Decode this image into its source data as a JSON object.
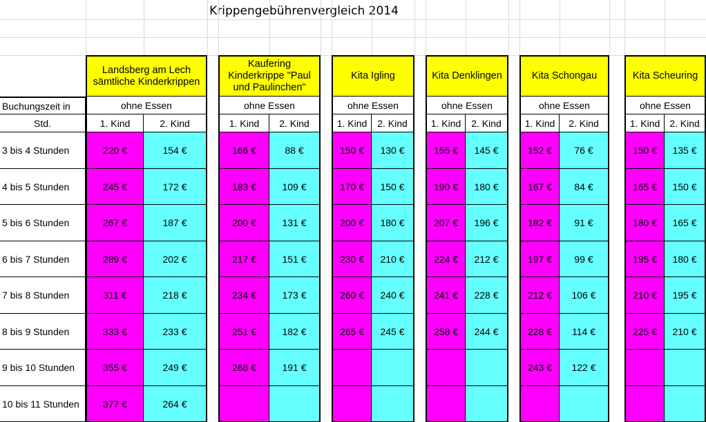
{
  "title": "Krippengebührenvergleich 2014",
  "row_header": {
    "line1": "Buchungszeit in",
    "line2": "Std."
  },
  "meal_label": "ohne Essen",
  "child_labels": [
    "1. Kind",
    "2. Kind"
  ],
  "rows": [
    "3 bis 4 Stunden",
    "4 bis 5 Stunden",
    "5 bis 6 Stunden",
    "6 bis 7 Stunden",
    "7 bis 8 Stunden",
    "8 bis 9 Stunden",
    "9 bis 10 Stunden",
    "10 bis 11 Stunden"
  ],
  "colors": {
    "header_fill": "#ffff00",
    "first_child_fill": "#ff00ff",
    "second_child_fill": "#66ffff"
  },
  "groups": [
    {
      "name": "Landsberg am Lech sämtliche Kinderkrippen",
      "first": [
        "220 €",
        "245 €",
        "267 €",
        "289 €",
        "311 €",
        "333 €",
        "355 €",
        "377 €"
      ],
      "second": [
        "154 €",
        "172 €",
        "187 €",
        "202 €",
        "218 €",
        "233 €",
        "249 €",
        "264 €"
      ]
    },
    {
      "name": "Kaufering Kinderkrippe \"Paul und Paulinchen\"",
      "first": [
        "166 €",
        "183 €",
        "200 €",
        "217 €",
        "234 €",
        "251 €",
        "268 €",
        ""
      ],
      "second": [
        "88 €",
        "109 €",
        "131 €",
        "151 €",
        "173 €",
        "182 €",
        "191 €",
        ""
      ]
    },
    {
      "name": "Kita Igling",
      "first": [
        "150 €",
        "170 €",
        "200 €",
        "230 €",
        "260 €",
        "265 €",
        "",
        ""
      ],
      "second": [
        "130 €",
        "150 €",
        "180 €",
        "210 €",
        "240 €",
        "245 €",
        "",
        ""
      ]
    },
    {
      "name": "Kita Denklingen",
      "first": [
        "155 €",
        "190 €",
        "207 €",
        "224 €",
        "241 €",
        "258 €",
        "",
        ""
      ],
      "second": [
        "145 €",
        "180 €",
        "196 €",
        "212 €",
        "228 €",
        "244 €",
        "",
        ""
      ]
    },
    {
      "name": "Kita Schongau",
      "first": [
        "152 €",
        "167 €",
        "182 €",
        "197 €",
        "212 €",
        "228 €",
        "243 €",
        ""
      ],
      "second": [
        "76 €",
        "84 €",
        "91 €",
        "99 €",
        "106 €",
        "114 €",
        "122 €",
        ""
      ]
    },
    {
      "name": "Kita Scheuring",
      "first": [
        "150 €",
        "165 €",
        "180 €",
        "195 €",
        "210 €",
        "225 €",
        "",
        ""
      ],
      "second": [
        "135 €",
        "150 €",
        "165 €",
        "180 €",
        "195 €",
        "210 €",
        "",
        ""
      ]
    }
  ]
}
